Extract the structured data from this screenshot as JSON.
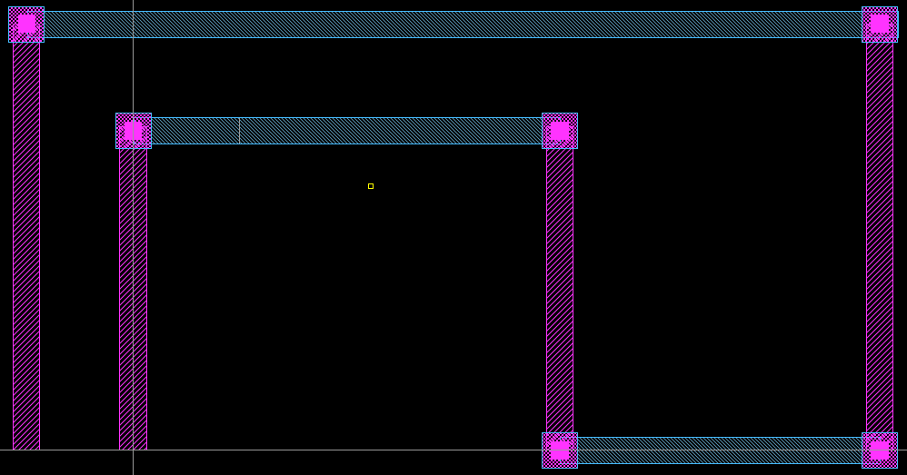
{
  "canvas": {
    "background": "#000000",
    "layers": {
      "poly": {
        "color": "#ff33ff"
      },
      "metal1": {
        "color": "#44bbff"
      },
      "contact": {
        "color": "#ff33ff"
      }
    },
    "crosshair_color": "#9a9a9a",
    "marker_color": "#ffff00"
  }
}
